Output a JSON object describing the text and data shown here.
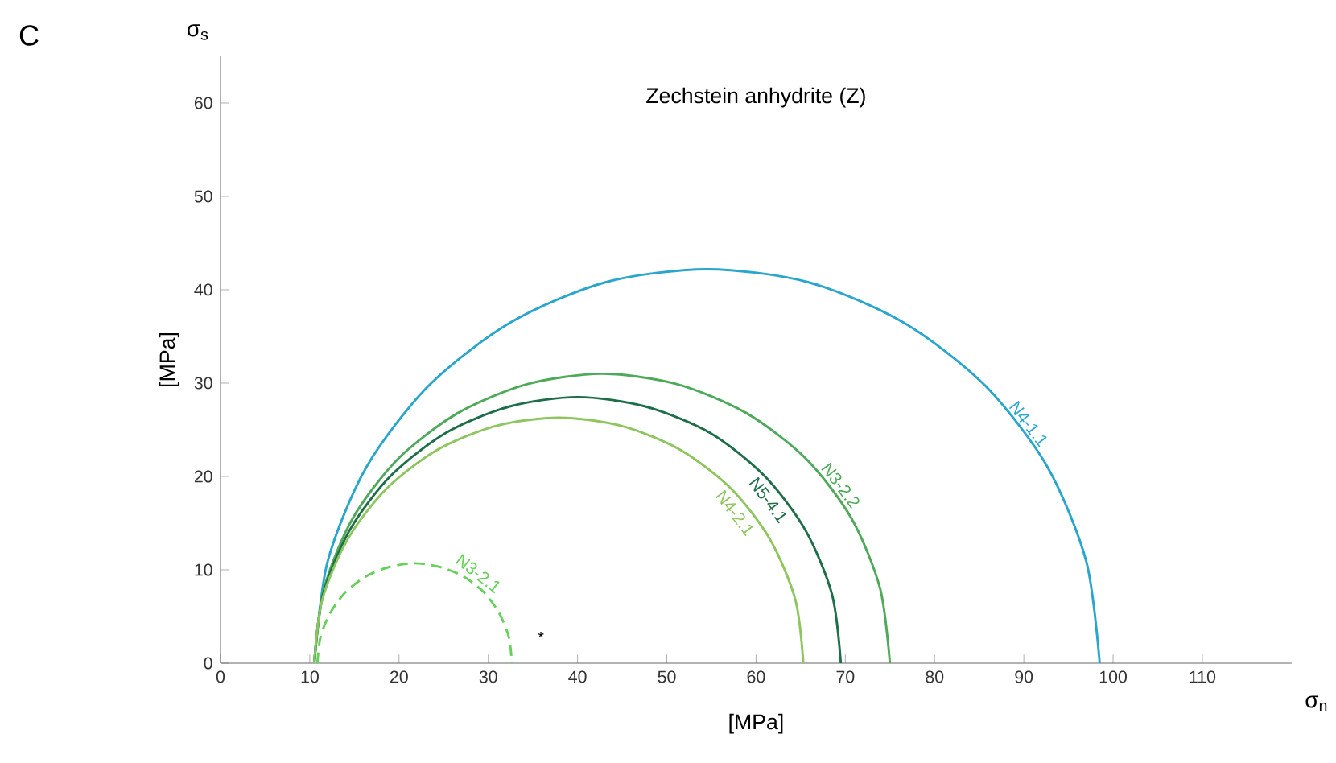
{
  "chart_data": {
    "type": "line",
    "title": "Zechstein anhydrite (Z)",
    "xlabel": "[MPa]",
    "ylabel": "[MPa]",
    "annotations": [
      "C",
      "σ$_{s}$",
      "σ$_{n}$",
      "*"
    ],
    "xlim": [
      0,
      120
    ],
    "ylim": [
      0,
      65
    ],
    "xticks": [
      0,
      10,
      20,
      30,
      40,
      50,
      60,
      70,
      80,
      90,
      100,
      110
    ],
    "yticks": [
      0,
      10,
      20,
      30,
      40,
      50,
      60
    ],
    "series": [
      {
        "name": "N4-1.1",
        "color": "#2aa6cc",
        "line_style": "solid",
        "x": [
          10.5,
          12.0,
          16.4,
          23.4,
          32.5,
          43.1,
          54.5,
          65.9,
          76.5,
          85.6,
          92.6,
          97.0,
          98.5
        ],
        "values": [
          0,
          10.9,
          21.1,
          29.8,
          36.5,
          40.8,
          42.2,
          40.8,
          36.5,
          29.8,
          21.1,
          10.9,
          0
        ]
      },
      {
        "name": "N3-2.2",
        "color": "#4fa95a",
        "line_style": "solid",
        "x": [
          10.5,
          11.6,
          14.8,
          19.9,
          26.6,
          34.4,
          42.75,
          51.1,
          58.9,
          65.6,
          70.7,
          73.9,
          75.0
        ],
        "values": [
          0,
          8.0,
          15.5,
          21.9,
          26.8,
          29.9,
          31.0,
          29.9,
          26.8,
          21.9,
          15.5,
          8.0,
          0
        ]
      },
      {
        "name": "N5-4.1",
        "color": "#1e6e48",
        "line_style": "solid",
        "x": [
          10.5,
          11.5,
          14.5,
          19.1,
          25.3,
          32.4,
          40.0,
          47.6,
          54.8,
          60.9,
          65.5,
          68.5,
          69.5
        ],
        "values": [
          0,
          7.4,
          14.3,
          20.1,
          24.7,
          27.5,
          28.5,
          27.5,
          24.7,
          20.1,
          14.3,
          7.4,
          0
        ]
      },
      {
        "name": "N4-2.1",
        "color": "#8dc55e",
        "line_style": "solid",
        "x": [
          10.5,
          11.4,
          14.2,
          18.5,
          24.2,
          30.8,
          37.9,
          45.0,
          51.6,
          57.3,
          61.6,
          64.4,
          65.3
        ],
        "values": [
          0,
          6.8,
          13.2,
          18.6,
          22.8,
          25.4,
          26.3,
          25.4,
          22.8,
          18.6,
          13.2,
          6.8,
          0
        ]
      },
      {
        "name": "N3-2.1",
        "color": "#66d05a",
        "line_style": "dashed",
        "x": [
          10.85,
          11.2,
          12.3,
          14.0,
          16.3,
          18.9,
          21.75,
          24.6,
          27.2,
          29.5,
          31.2,
          32.3,
          32.65
        ],
        "values": [
          0,
          2.8,
          5.4,
          7.6,
          9.3,
          10.3,
          10.7,
          10.3,
          9.3,
          7.6,
          5.4,
          2.8,
          0
        ]
      }
    ]
  }
}
